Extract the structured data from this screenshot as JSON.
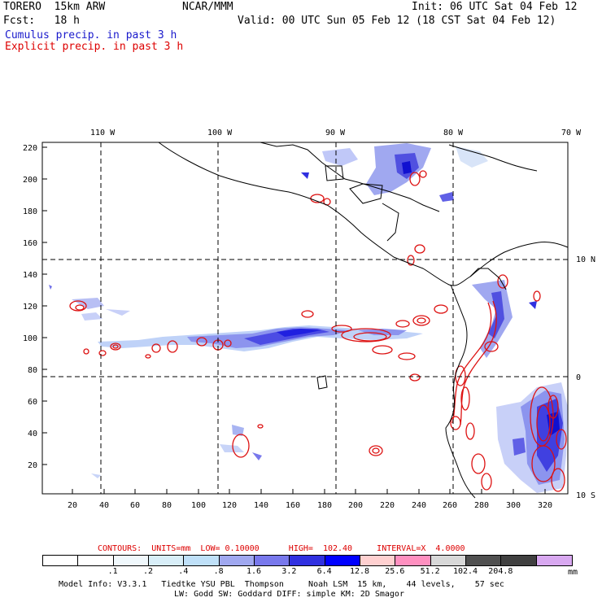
{
  "header": {
    "model": "TORERO  15km ARW",
    "org": "NCAR/MMM",
    "init": "Init: 06 UTC Sat 04 Feb 12",
    "fcst": "Fcst:   18 h",
    "valid": "Valid: 00 UTC Sun 05 Feb 12 (18 CST Sat 04 Feb 12)",
    "line_cumulus": "Cumulus precip. in past 3 h",
    "line_explicit": "Explicit precip. in past 3 h"
  },
  "axes": {
    "lon_labels": [
      "110 W",
      "100 W",
      "90 W",
      "80 W",
      "70 W"
    ],
    "lat_labels": [
      "10 N",
      "0",
      "10 S"
    ],
    "y_ticks": [
      "220",
      "200",
      "180",
      "160",
      "140",
      "120",
      "100",
      "80",
      "60",
      "40",
      "20"
    ],
    "x_ticks": [
      "20",
      "40",
      "60",
      "80",
      "100",
      "120",
      "140",
      "160",
      "180",
      "200",
      "220",
      "240",
      "260",
      "280",
      "300",
      "320"
    ]
  },
  "contours_line": {
    "text": "CONTOURS:  UNITS=mm  LOW= 0.10000      HIGH=  102.40     INTERVAL=X  4.0000"
  },
  "colorbar": {
    "colors": [
      "#ffffff",
      "#ffffff",
      "#f0f8fc",
      "#d8eef8",
      "#bfe0f8",
      "#a0a8f0",
      "#7878ec",
      "#3030e0",
      "#0000ff",
      "#ffd0d0",
      "#ff90c0",
      "#d8d8d8",
      "#505050",
      "#404040",
      "#d8a8f0"
    ],
    "labels": [
      ".1",
      ".2",
      ".4",
      ".8",
      "1.6",
      "3.2",
      "6.4",
      "12.8",
      "25.6",
      "51.2",
      "102.4",
      "204.8"
    ],
    "units": "mm"
  },
  "footer": {
    "line1": "Model Info: V3.3.1   Tiedtke YSU PBL  Thompson     Noah LSM  15 km,    44 levels,    57 sec",
    "line2": "LW: Godd SW: Goddard DIFF: simple KM: 2D Smagor"
  }
}
